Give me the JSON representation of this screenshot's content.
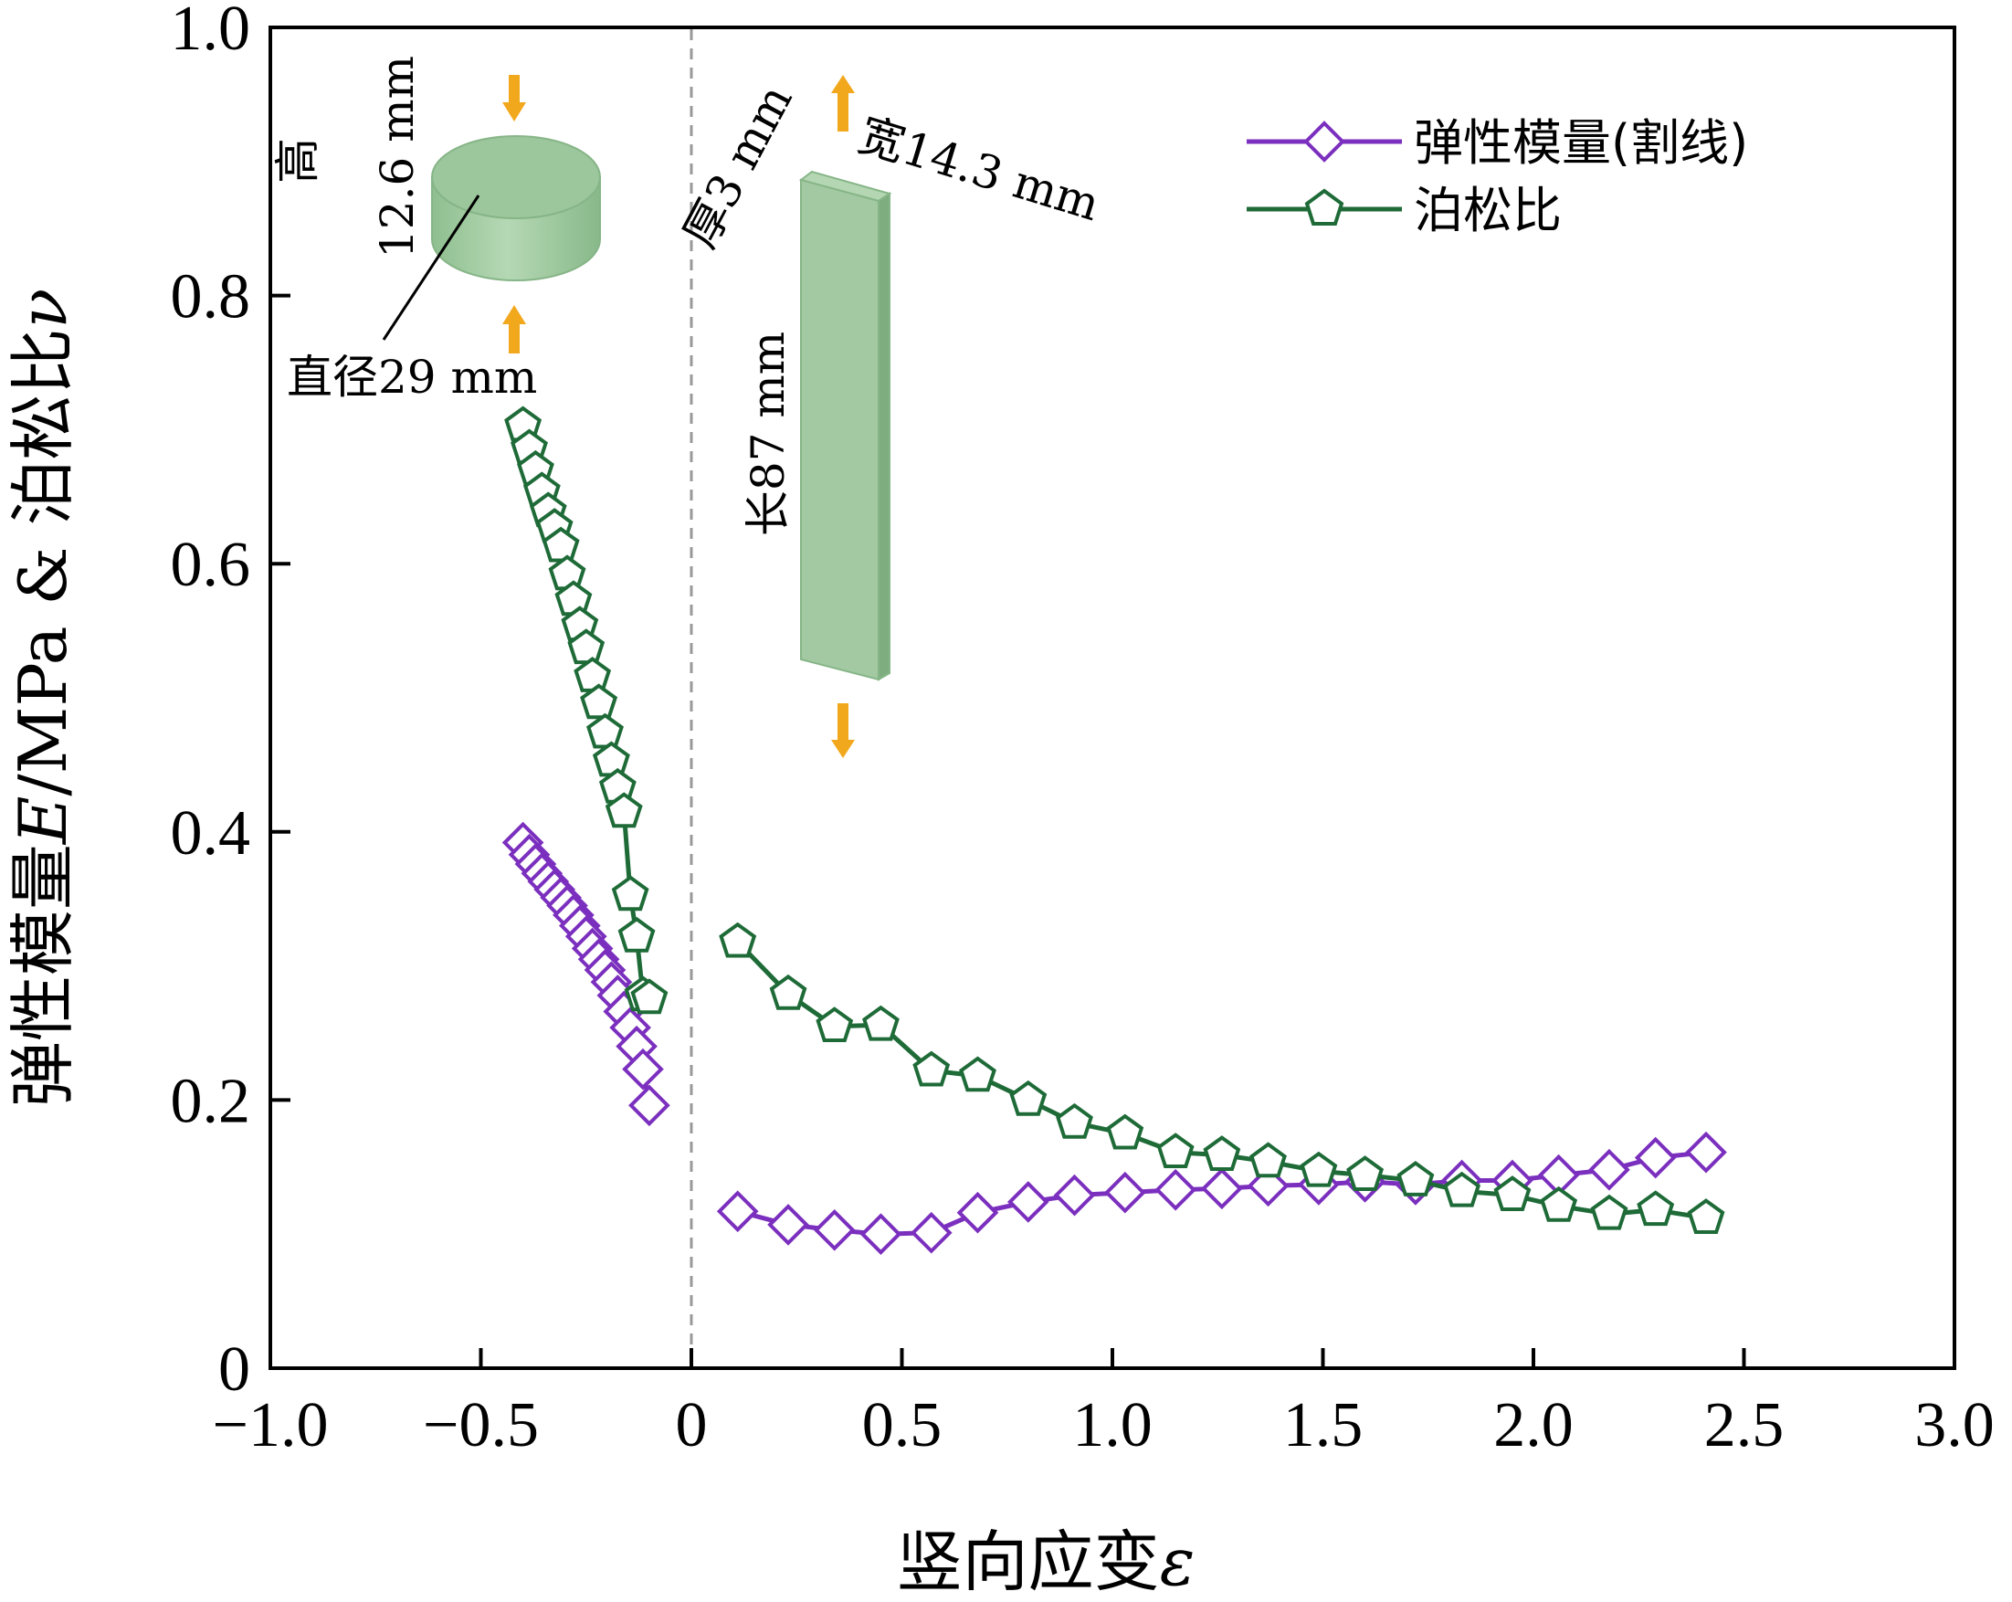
{
  "chart_data": {
    "type": "line",
    "xlabel": "竖向应变",
    "xlabel_symbol": "ε",
    "ylabel_prefix": "弹性模量",
    "ylabel_E": "E",
    "ylabel_mid": "/MPa & 泊松比",
    "ylabel_nu": "ν",
    "xlim": [
      -1.0,
      3.0
    ],
    "ylim": [
      0,
      1.0
    ],
    "xticks": [
      "−1.0",
      "−0.5",
      "0",
      "0.5",
      "1.0",
      "1.5",
      "2.0",
      "2.5",
      "3.0"
    ],
    "yticks": [
      "0",
      "0.2",
      "0.4",
      "0.6",
      "0.8",
      "1.0"
    ],
    "grid": false,
    "reference_line_x": 0,
    "legend_position": "top-right",
    "series": [
      {
        "name": "弹性模量(割线)",
        "marker": "diamond",
        "color": "#7b2fbe",
        "segments": [
          {
            "x": [
              -0.4,
              -0.385,
              -0.37,
              -0.355,
              -0.34,
              -0.325,
              -0.31,
              -0.295,
              -0.28,
              -0.265,
              -0.25,
              -0.235,
              -0.22,
              -0.205,
              -0.19,
              -0.175,
              -0.16,
              -0.145,
              -0.13,
              -0.115,
              -0.1
            ],
            "y": [
              0.392,
              0.383,
              0.376,
              0.369,
              0.363,
              0.357,
              0.351,
              0.345,
              0.338,
              0.33,
              0.322,
              0.313,
              0.305,
              0.297,
              0.288,
              0.278,
              0.266,
              0.254,
              0.24,
              0.223,
              0.196
            ]
          },
          {
            "x": [
              0.11,
              0.23,
              0.34,
              0.45,
              0.57,
              0.68,
              0.8,
              0.91,
              1.03,
              1.15,
              1.26,
              1.37,
              1.49,
              1.6,
              1.72,
              1.83,
              1.95,
              2.06,
              2.18,
              2.29,
              2.41
            ],
            "y": [
              0.117,
              0.107,
              0.103,
              0.1,
              0.101,
              0.116,
              0.124,
              0.129,
              0.131,
              0.133,
              0.134,
              0.136,
              0.137,
              0.139,
              0.137,
              0.14,
              0.14,
              0.144,
              0.148,
              0.157,
              0.161
            ]
          }
        ]
      },
      {
        "name": "泊松比",
        "marker": "pentagon",
        "color": "#1e6b38",
        "segments": [
          {
            "x": [
              -0.4,
              -0.385,
              -0.37,
              -0.355,
              -0.34,
              -0.325,
              -0.31,
              -0.295,
              -0.28,
              -0.265,
              -0.25,
              -0.235,
              -0.22,
              -0.205,
              -0.19,
              -0.175,
              -0.16,
              -0.145,
              -0.13,
              -0.115,
              -0.1
            ],
            "y": [
              0.703,
              0.686,
              0.67,
              0.654,
              0.639,
              0.627,
              0.613,
              0.592,
              0.573,
              0.554,
              0.537,
              0.516,
              0.496,
              0.474,
              0.453,
              0.433,
              0.415,
              0.353,
              0.322,
              0.278,
              0.276
            ]
          },
          {
            "x": [
              0.11,
              0.23,
              0.34,
              0.45,
              0.57,
              0.68,
              0.8,
              0.91,
              1.03,
              1.15,
              1.26,
              1.37,
              1.49,
              1.6,
              1.72,
              1.83,
              1.95,
              2.06,
              2.18,
              2.29,
              2.41
            ],
            "y": [
              0.318,
              0.279,
              0.255,
              0.256,
              0.222,
              0.218,
              0.2,
              0.183,
              0.175,
              0.161,
              0.159,
              0.154,
              0.147,
              0.144,
              0.14,
              0.132,
              0.129,
              0.121,
              0.115,
              0.118,
              0.112
            ]
          }
        ]
      }
    ],
    "annotations": {
      "cylinder": {
        "height_label": "12.6 mm",
        "height_char": "高",
        "diameter_label": "直径29 mm"
      },
      "plate": {
        "thickness_label": "厚3 mm",
        "width_label": "宽14.3 mm",
        "length_label": "长87 mm"
      },
      "specimen_color": "#a6cca6",
      "arrow_color": "#f2a81d"
    }
  }
}
